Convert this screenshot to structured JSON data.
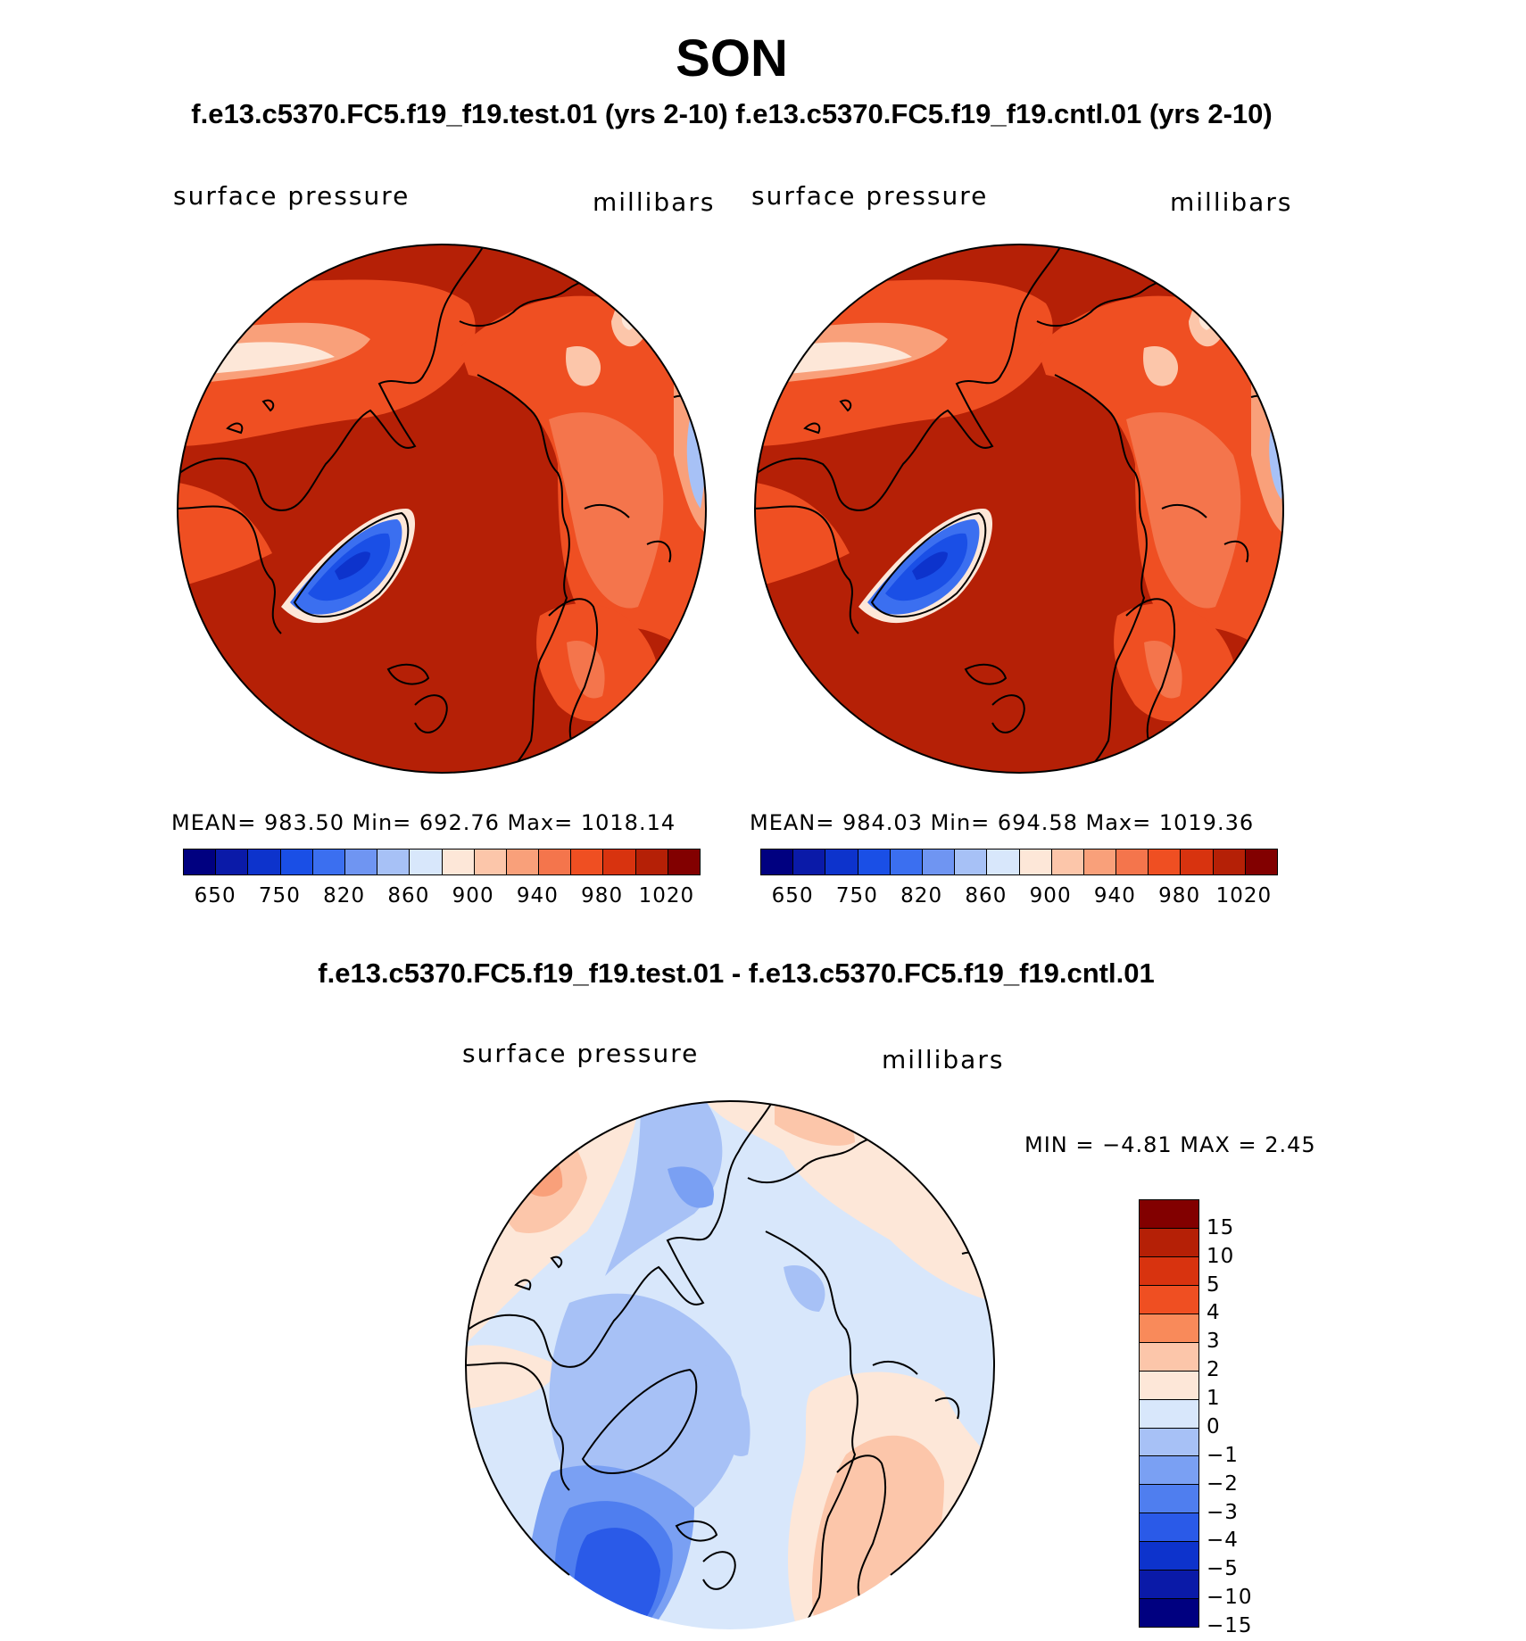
{
  "figure": {
    "season": "SON",
    "subtitle": "f.e13.c5370.FC5.f19_f19.test.01 (yrs 2-10) f.e13.c5370.FC5.f19_f19.cntl.01 (yrs 2-10)",
    "diff_title": "f.e13.c5370.FC5.f19_f19.test.01 - f.e13.c5370.FC5.f19_f19.cntl.01"
  },
  "panels": [
    {
      "variable": "surface pressure",
      "units": "millibars",
      "stats": "MEAN= 983.50   Min= 692.76   Max= 1018.14"
    },
    {
      "variable": "surface pressure",
      "units": "millibars",
      "stats": "MEAN= 984.03   Min= 694.58   Max= 1019.36"
    }
  ],
  "diff_panel": {
    "variable": "surface pressure",
    "units": "millibars",
    "stats": "MIN =   −4.81  MAX =     2.45"
  },
  "abs_colorbar": {
    "colors": [
      "#000080",
      "#0a1aa8",
      "#0d33cc",
      "#1a4fe6",
      "#3b6ff0",
      "#6f95f2",
      "#a7c1f6",
      "#d8e7fb",
      "#fde7d8",
      "#fcc6aa",
      "#f9a07a",
      "#f4754c",
      "#ef4f22",
      "#d8330f",
      "#b52006",
      "#820000"
    ],
    "labels": [
      "650",
      "750",
      "820",
      "860",
      "900",
      "940",
      "980",
      "1020"
    ]
  },
  "diff_colorbar": {
    "colors": [
      "#820000",
      "#b52006",
      "#d8330f",
      "#ef4f22",
      "#f98a5a",
      "#fcc6aa",
      "#fde7d8",
      "#d8e7fb",
      "#a7c1f6",
      "#7aa0f3",
      "#4f7eef",
      "#2a5ae8",
      "#0d33cc",
      "#0a1aa8",
      "#000080"
    ],
    "labels": [
      "15",
      "10",
      "5",
      "4",
      "3",
      "2",
      "1",
      "0",
      "−1",
      "−2",
      "−3",
      "−4",
      "−5",
      "−10",
      "−15"
    ]
  }
}
